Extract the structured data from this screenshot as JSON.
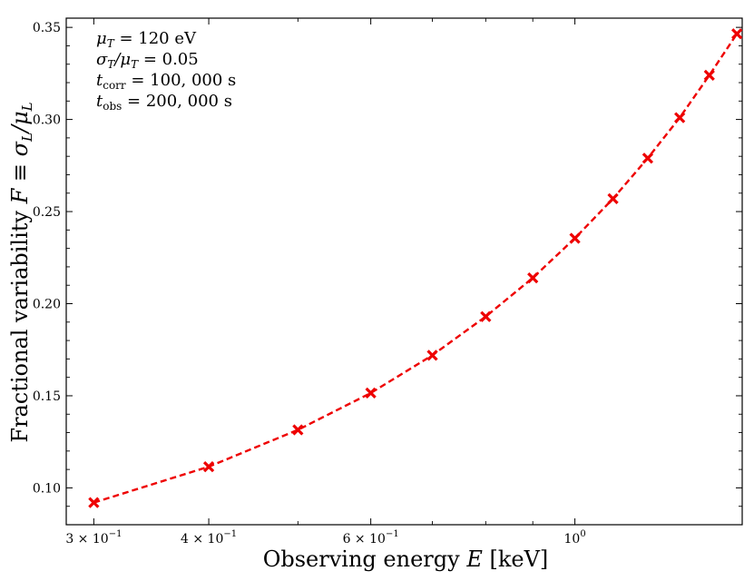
{
  "chart_data": {
    "type": "line",
    "xscale": "log",
    "xlabel_main": "Observing energy",
    "xlabel_var": "E",
    "xlabel_unit": "[keV]",
    "ylabel_main": "Fractional variability",
    "ylabel_var": "F ≡ σ",
    "ylabel_sub1": "L",
    "ylabel_sep": "/μ",
    "ylabel_sub2": "L",
    "xlim": [
      0.28,
      1.52
    ],
    "ylim": [
      0.08,
      0.355
    ],
    "x_ticks": [
      {
        "value": 0.3,
        "mantissa": "3 × 10",
        "exp": "−1"
      },
      {
        "value": 0.4,
        "mantissa": "4 × 10",
        "exp": "−1"
      },
      {
        "value": 0.6,
        "mantissa": "6 × 10",
        "exp": "−1"
      },
      {
        "value": 1.0,
        "mantissa": "10",
        "exp": "0"
      }
    ],
    "x_minor_ticks": [
      0.5,
      0.7,
      0.8,
      0.9
    ],
    "y_ticks": [
      {
        "value": 0.1,
        "label": "0.10"
      },
      {
        "value": 0.15,
        "label": "0.15"
      },
      {
        "value": 0.2,
        "label": "0.20"
      },
      {
        "value": 0.25,
        "label": "0.25"
      },
      {
        "value": 0.3,
        "label": "0.30"
      },
      {
        "value": 0.35,
        "label": "0.35"
      }
    ],
    "series": [
      {
        "name": "F",
        "color": "#ee0000",
        "marker": "x",
        "linestyle": "dashed",
        "x": [
          0.3,
          0.4,
          0.5,
          0.6,
          0.7,
          0.8,
          0.9,
          1.0,
          1.1,
          1.2,
          1.3,
          1.4,
          1.5
        ],
        "y": [
          0.092,
          0.1115,
          0.1315,
          0.1515,
          0.172,
          0.193,
          0.214,
          0.2355,
          0.257,
          0.279,
          0.301,
          0.324,
          0.3465
        ]
      }
    ],
    "annotations": [
      {
        "var": "μ",
        "sub": "T",
        "text": " = 120 eV"
      },
      {
        "var": "σ",
        "sub": "T",
        "mid": "/μ",
        "sub2": "T",
        "text": " = 0.05"
      },
      {
        "var": "t",
        "sub": "corr",
        "text": " = 100, 000 s"
      },
      {
        "var": "t",
        "sub": "obs",
        "text": " = 200, 000 s"
      }
    ]
  }
}
